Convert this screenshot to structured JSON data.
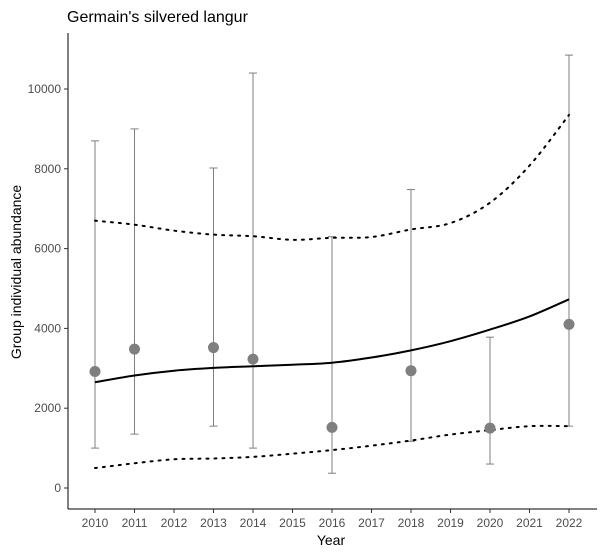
{
  "chart_data": {
    "type": "scatter",
    "title": "Germain's silvered langur",
    "xlabel": "Year",
    "ylabel": "Group individual abundance",
    "xlim": [
      2010,
      2022
    ],
    "ylim": [
      0,
      11000
    ],
    "x_ticks": [
      2010,
      2011,
      2012,
      2013,
      2014,
      2015,
      2016,
      2017,
      2018,
      2019,
      2020,
      2021,
      2022
    ],
    "y_ticks": [
      0,
      2000,
      4000,
      6000,
      8000,
      10000
    ],
    "y_tick_labels": [
      "0",
      "2000",
      "4000",
      "6000",
      "8000",
      "10000"
    ],
    "grid": false,
    "observations": {
      "x": [
        2010,
        2011,
        2013,
        2014,
        2016,
        2018,
        2020,
        2022
      ],
      "y": [
        2920,
        3480,
        3520,
        3230,
        1520,
        2940,
        1500,
        4100
      ],
      "lower": [
        1000,
        1350,
        1550,
        1000,
        370,
        1170,
        600,
        1550
      ],
      "upper": [
        8700,
        9000,
        8020,
        10400,
        6300,
        7480,
        3780,
        10850
      ],
      "color": "#7f7f7f"
    },
    "trend": {
      "x": [
        2010,
        2011,
        2012,
        2013,
        2014,
        2015,
        2016,
        2017,
        2018,
        2019,
        2020,
        2021,
        2022
      ],
      "y": [
        2650,
        2820,
        2940,
        3010,
        3050,
        3090,
        3140,
        3270,
        3450,
        3680,
        3970,
        4300,
        4730
      ],
      "color": "#000000"
    },
    "trend_lower": {
      "x": [
        2010,
        2011,
        2012,
        2013,
        2014,
        2015,
        2016,
        2017,
        2018,
        2019,
        2020,
        2021,
        2022
      ],
      "y": [
        500,
        620,
        720,
        740,
        780,
        860,
        950,
        1060,
        1190,
        1340,
        1450,
        1550,
        1550
      ]
    },
    "trend_upper": {
      "x": [
        2010,
        2011,
        2012,
        2013,
        2014,
        2015,
        2016,
        2017,
        2018,
        2019,
        2020,
        2021,
        2022
      ],
      "y": [
        6700,
        6600,
        6450,
        6350,
        6310,
        6220,
        6270,
        6290,
        6480,
        6640,
        7150,
        8080,
        9350
      ]
    }
  }
}
